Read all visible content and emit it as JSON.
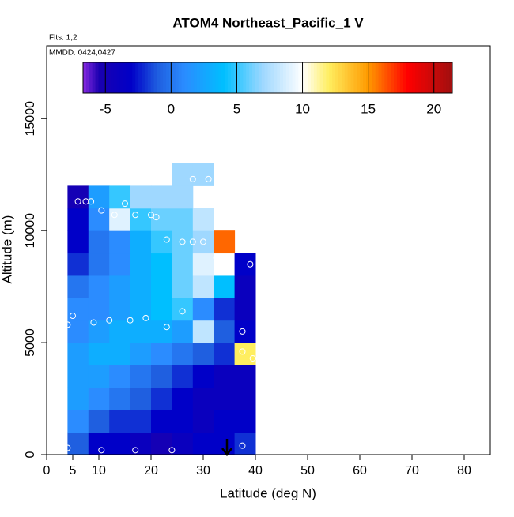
{
  "chart_data": {
    "type": "heatmap",
    "title": "ATOM4 Northeast_Pacific_1 V",
    "flights_label": "Flts: 1,2",
    "date_label": "MMDD: 0424,0427",
    "x_label": "Latitude (deg N)",
    "y_label": "Altitude (m)",
    "xlim": [
      0,
      85
    ],
    "ylim": [
      0,
      18250
    ],
    "xticks": [
      0,
      5,
      10,
      20,
      30,
      40,
      50,
      60,
      70,
      80
    ],
    "yticks": [
      0,
      5000,
      10000,
      15000
    ],
    "clim": [
      -6.7,
      21.4
    ],
    "cticks": [
      -5,
      0,
      5,
      10,
      15,
      20
    ],
    "colorscale": [
      [
        -6.7,
        "#8a2be2"
      ],
      [
        -5.5,
        "#1a00b0"
      ],
      [
        -3,
        "#0000c8"
      ],
      [
        -1,
        "#1f5fe0"
      ],
      [
        1,
        "#2b8cff"
      ],
      [
        4,
        "#00bfff"
      ],
      [
        7,
        "#9fd8ff"
      ],
      [
        10,
        "#ffffff"
      ],
      [
        12,
        "#ffee60"
      ],
      [
        15,
        "#ff9a00"
      ],
      [
        18,
        "#ff0000"
      ],
      [
        21.4,
        "#a01010"
      ]
    ],
    "heatmap": {
      "x_bins": [
        4,
        8,
        12,
        16,
        20,
        24,
        28,
        32,
        36,
        40
      ],
      "y_bins": [
        0,
        1000,
        2000,
        3000,
        4000,
        5000,
        6000,
        7000,
        8000,
        9000,
        10000,
        11000,
        12000,
        13000
      ],
      "values": [
        [
          -1,
          -3,
          -3,
          -4,
          -5,
          -4,
          -3,
          -3,
          -2
        ],
        [
          1,
          -1,
          -2,
          -2,
          -3,
          -3,
          -4,
          -3,
          -3
        ],
        [
          2,
          1,
          0,
          -1,
          -2,
          -3,
          -4,
          -4,
          -4
        ],
        [
          2,
          2,
          1,
          0,
          -1,
          -2,
          -3,
          -4,
          -4
        ],
        [
          2,
          3,
          3,
          2,
          1,
          0,
          -1,
          -2,
          12
        ],
        [
          1,
          2,
          3,
          3,
          3,
          2,
          8,
          -1,
          -3
        ],
        [
          1,
          1,
          2,
          3,
          4,
          5,
          1,
          -2,
          -4
        ],
        [
          0,
          1,
          2,
          3,
          4,
          6,
          8,
          4,
          -4
        ],
        [
          -2,
          0,
          1,
          3,
          4,
          6,
          9,
          10,
          -3
        ],
        [
          -3,
          0,
          1,
          3,
          5,
          6,
          7,
          16,
          null
        ],
        [
          -3,
          1,
          9,
          5,
          6,
          6,
          8,
          null,
          null
        ],
        [
          -5,
          2,
          5,
          7,
          7,
          7,
          null,
          null,
          null
        ],
        [
          null,
          null,
          null,
          null,
          null,
          7,
          7,
          null,
          null
        ]
      ]
    },
    "points": {
      "x": [
        4,
        10.5,
        17,
        24,
        37.5,
        4,
        5,
        9,
        12,
        16,
        19,
        23,
        26,
        37.5,
        37.5,
        39.5,
        6,
        7.5,
        8.5,
        10.5,
        15,
        13,
        17,
        20,
        21,
        23,
        26,
        28,
        30,
        32.5,
        35,
        39,
        28,
        31
      ],
      "y": [
        300,
        200,
        200,
        200,
        400,
        5800,
        6200,
        5900,
        6000,
        6000,
        6100,
        5700,
        6400,
        5500,
        4600,
        4300,
        11300,
        11300,
        11300,
        10900,
        11200,
        10700,
        10700,
        10700,
        10600,
        9600,
        9500,
        9500,
        9500,
        8800,
        8300,
        8500,
        12300,
        12300
      ]
    }
  }
}
